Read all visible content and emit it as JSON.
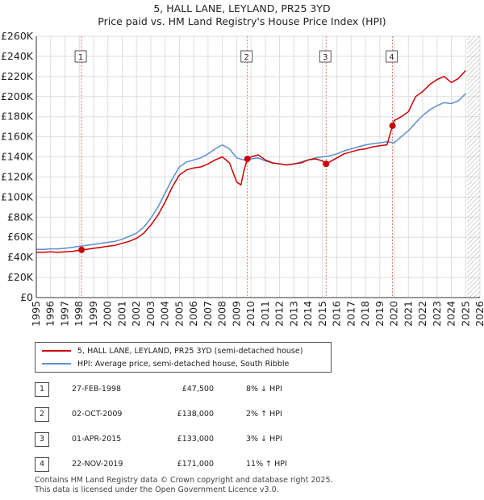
{
  "title_line1": "5, HALL LANE, LEYLAND, PR25 3YD",
  "title_line2": "Price paid vs. HM Land Registry's House Price Index (HPI)",
  "colors": {
    "property": "#cc0000",
    "hpi": "#5b8fd0",
    "event_line": "#e07070",
    "hatch": "#aaaaaa",
    "grid": "#dddddd"
  },
  "chart_data": {
    "type": "line",
    "title": "Price paid vs. HM Land Registry's House Price Index (HPI)",
    "xlabel": "",
    "ylabel": "",
    "xlim": [
      1995,
      2026
    ],
    "ylim": [
      0,
      260000
    ],
    "x_ticks": [
      1995,
      1996,
      1997,
      1998,
      1999,
      2000,
      2001,
      2002,
      2003,
      2004,
      2005,
      2006,
      2007,
      2008,
      2009,
      2010,
      2011,
      2012,
      2013,
      2014,
      2015,
      2016,
      2017,
      2018,
      2019,
      2020,
      2021,
      2022,
      2023,
      2024,
      2025,
      2026
    ],
    "y_ticks": [
      0,
      20000,
      40000,
      60000,
      80000,
      100000,
      120000,
      140000,
      160000,
      180000,
      200000,
      220000,
      240000,
      260000
    ],
    "y_tick_labels": [
      "£0",
      "£20K",
      "£40K",
      "£60K",
      "£80K",
      "£100K",
      "£120K",
      "£140K",
      "£160K",
      "£180K",
      "£200K",
      "£220K",
      "£240K",
      "£260K"
    ],
    "hatch_from": 2025.1,
    "series": [
      {
        "name": "5, HALL LANE, LEYLAND, PR25 3YD (semi-detached house)",
        "x": [
          1995.0,
          1995.5,
          1996.0,
          1996.5,
          1997.0,
          1997.5,
          1998.0,
          1998.16,
          1998.5,
          1999.0,
          1999.5,
          2000.0,
          2000.5,
          2001.0,
          2001.5,
          2002.0,
          2002.5,
          2003.0,
          2003.5,
          2004.0,
          2004.5,
          2005.0,
          2005.5,
          2006.0,
          2006.5,
          2007.0,
          2007.5,
          2008.0,
          2008.5,
          2009.0,
          2009.3,
          2009.5,
          2009.75,
          2010.0,
          2010.5,
          2011.0,
          2011.5,
          2012.0,
          2012.5,
          2013.0,
          2013.5,
          2014.0,
          2014.5,
          2015.0,
          2015.25,
          2015.5,
          2016.0,
          2016.5,
          2017.0,
          2017.5,
          2018.0,
          2018.5,
          2019.0,
          2019.5,
          2019.89,
          2020.0,
          2020.5,
          2021.0,
          2021.5,
          2022.0,
          2022.5,
          2023.0,
          2023.5,
          2024.0,
          2024.5,
          2025.0
        ],
        "values": [
          45000,
          45000,
          45500,
          45000,
          45500,
          46000,
          47000,
          47500,
          48000,
          49000,
          50000,
          51000,
          52000,
          54000,
          56000,
          59000,
          64000,
          72000,
          82000,
          95000,
          110000,
          122000,
          127000,
          129000,
          130000,
          133000,
          137000,
          140000,
          134000,
          115000,
          112000,
          126000,
          138000,
          140000,
          142000,
          137000,
          134000,
          133000,
          132000,
          133000,
          134000,
          137000,
          138000,
          136000,
          133000,
          135000,
          139000,
          143000,
          145000,
          147000,
          148000,
          150000,
          151000,
          152000,
          171000,
          176000,
          180000,
          185000,
          200000,
          205000,
          212000,
          217000,
          220000,
          214000,
          218000,
          226000
        ]
      },
      {
        "name": "HPI: Average price, semi-detached house, South Ribble",
        "x": [
          1995.0,
          1995.5,
          1996.0,
          1996.5,
          1997.0,
          1997.5,
          1998.0,
          1998.5,
          1999.0,
          1999.5,
          2000.0,
          2000.5,
          2001.0,
          2001.5,
          2002.0,
          2002.5,
          2003.0,
          2003.5,
          2004.0,
          2004.5,
          2005.0,
          2005.5,
          2006.0,
          2006.5,
          2007.0,
          2007.5,
          2008.0,
          2008.5,
          2009.0,
          2009.5,
          2010.0,
          2010.5,
          2011.0,
          2011.5,
          2012.0,
          2012.5,
          2013.0,
          2013.5,
          2014.0,
          2014.5,
          2015.0,
          2015.5,
          2016.0,
          2016.5,
          2017.0,
          2017.5,
          2018.0,
          2018.5,
          2019.0,
          2019.5,
          2020.0,
          2020.5,
          2021.0,
          2021.5,
          2022.0,
          2022.5,
          2023.0,
          2023.5,
          2024.0,
          2024.5,
          2025.0
        ],
        "values": [
          48000,
          48000,
          48500,
          48500,
          49000,
          50000,
          51000,
          52000,
          53000,
          54000,
          55000,
          56000,
          58000,
          61000,
          64000,
          70000,
          79000,
          90000,
          104000,
          118000,
          130000,
          135000,
          137000,
          139000,
          143000,
          148000,
          152000,
          148000,
          139000,
          137000,
          138000,
          139000,
          136000,
          134000,
          133000,
          132000,
          133000,
          135000,
          137000,
          139000,
          140000,
          141000,
          143000,
          146000,
          148000,
          150000,
          152000,
          153000,
          154000,
          155000,
          154000,
          160000,
          166000,
          174000,
          181000,
          187000,
          191000,
          194000,
          193000,
          196000,
          203000
        ]
      }
    ],
    "markers": [
      {
        "label": "1",
        "x": 1998.16,
        "value": 47500
      },
      {
        "label": "2",
        "x": 2009.75,
        "value": 138000
      },
      {
        "label": "3",
        "x": 2015.25,
        "value": 133000
      },
      {
        "label": "4",
        "x": 2019.89,
        "value": 171000
      }
    ]
  },
  "legend": {
    "property_label": "5, HALL LANE, LEYLAND, PR25 3YD (semi-detached house)",
    "hpi_label": "HPI: Average price, semi-detached house, South Ribble"
  },
  "transactions": [
    {
      "num": "1",
      "date": "27-FEB-1998",
      "price": "£47,500",
      "hpi": "8% ↓ HPI"
    },
    {
      "num": "2",
      "date": "02-OCT-2009",
      "price": "£138,000",
      "hpi": "2% ↑ HPI"
    },
    {
      "num": "3",
      "date": "01-APR-2015",
      "price": "£133,000",
      "hpi": "3% ↓ HPI"
    },
    {
      "num": "4",
      "date": "22-NOV-2019",
      "price": "£171,000",
      "hpi": "11% ↑ HPI"
    }
  ],
  "footer": {
    "line1": "Contains HM Land Registry data © Crown copyright and database right 2025.",
    "line2": "This data is licensed under the Open Government Licence v3.0."
  }
}
